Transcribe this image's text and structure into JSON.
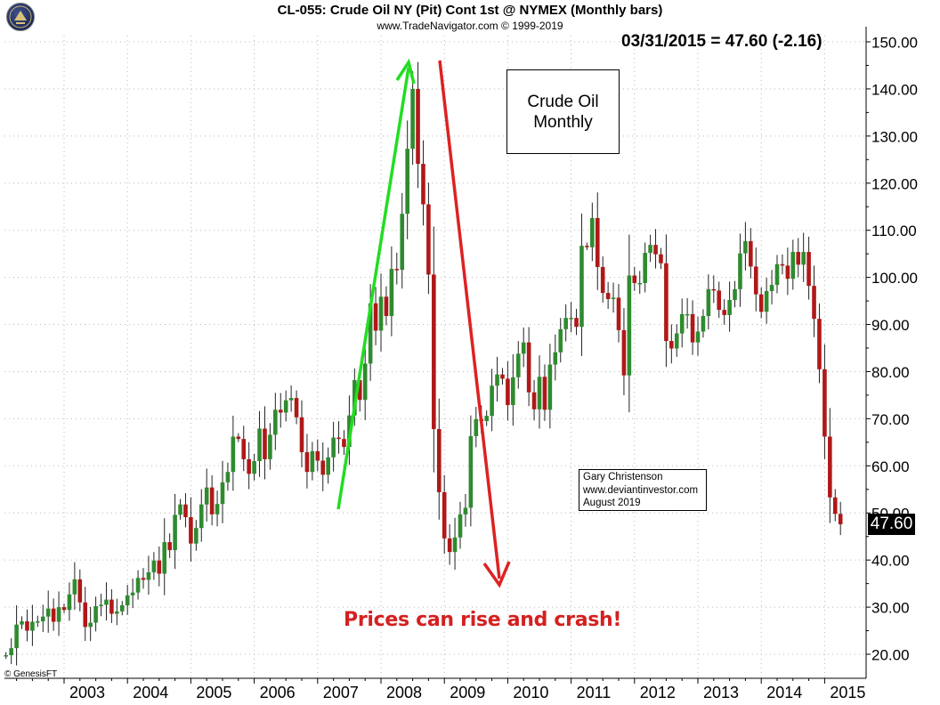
{
  "header": {
    "title": "CL-055:  Crude Oil NY (Pit) Cont 1st @ NYMEX  (Monthly bars)",
    "subtitle": "www.TradeNavigator.com © 1999-2019",
    "price_readout": "03/31/2015 = 47.60 (-2.16)"
  },
  "label_box": {
    "line1": "Crude Oil",
    "line2": "Monthly"
  },
  "credit": {
    "line1": "Gary Christenson",
    "line2": "www.deviantinvestor.com",
    "line3": "August 2019"
  },
  "headline": "Prices can rise and crash!",
  "copyright": "© GenesisFT",
  "last_price": "47.60",
  "colors": {
    "up": "#2e8b2e",
    "down": "#b01818",
    "rise_arrow": "#22dd22",
    "crash_arrow": "#dd2222"
  },
  "chart_data": {
    "type": "candlestick",
    "title": "CL-055:  Crude Oil NY (Pit) Cont 1st @ NYMEX  (Monthly bars)",
    "ylim": [
      15,
      152
    ],
    "y_ticks": [
      "150.00",
      "140.00",
      "130.00",
      "120.00",
      "110.00",
      "100.00",
      "90.00",
      "80.00",
      "70.00",
      "60.00",
      "50.00",
      "40.00",
      "30.00",
      "20.00"
    ],
    "y_tick_values": [
      150,
      140,
      130,
      120,
      110,
      100,
      90,
      80,
      70,
      60,
      50,
      40,
      30,
      20
    ],
    "x_ticks": [
      "2003",
      "2004",
      "2005",
      "2006",
      "2007",
      "2008",
      "2009",
      "2010",
      "2011",
      "2012",
      "2013",
      "2014",
      "2015"
    ],
    "x_tick_values": [
      2003,
      2004,
      2005,
      2006,
      2007,
      2008,
      2009,
      2010,
      2011,
      2012,
      2013,
      2014,
      2015
    ],
    "x_range": [
      2002.0,
      2015.25
    ],
    "close_series": [
      19.8,
      21.3,
      26.3,
      27.0,
      25.0,
      26.9,
      27.0,
      28.0,
      29.7,
      26.9,
      30.0,
      29.4,
      32.7,
      35.9,
      31.0,
      25.8,
      26.7,
      30.2,
      30.5,
      31.6,
      28.6,
      29.1,
      30.4,
      32.5,
      33.1,
      36.2,
      35.8,
      37.4,
      39.9,
      37.1,
      43.8,
      42.1,
      49.6,
      51.8,
      49.1,
      43.5,
      46.8,
      51.8,
      55.4,
      49.7,
      51.9,
      56.5,
      58.7,
      66.2,
      65.7,
      61.4,
      58.3,
      61.0,
      67.9,
      61.4,
      66.6,
      71.9,
      71.3,
      73.9,
      74.4,
      70.3,
      62.9,
      58.7,
      63.1,
      61.1,
      58.1,
      61.8,
      66.0,
      65.7,
      64.0,
      70.7,
      78.2,
      74.0,
      81.7,
      94.5,
      88.7,
      95.9,
      91.8,
      101.8,
      101.6,
      113.5,
      127.3,
      140.0,
      124.1,
      115.5,
      100.6,
      67.8,
      54.4,
      44.6,
      41.7,
      44.8,
      49.7,
      51.1,
      66.3,
      69.9,
      69.5,
      70.6,
      77.0,
      79.4,
      78.5,
      72.9,
      78.8,
      83.8,
      86.2,
      75.6,
      72.0,
      78.9,
      71.9,
      81.5,
      84.1,
      89.0,
      91.4,
      91.4,
      89.5,
      106.7,
      106.4,
      112.6,
      102.2,
      96.7,
      95.4,
      95.7,
      88.8,
      79.2,
      100.4,
      98.8,
      98.8,
      105.2,
      106.9,
      104.9,
      103.0,
      86.5,
      84.9,
      88.1,
      92.2,
      92.2,
      86.2,
      88.5,
      91.8,
      97.5,
      97.2,
      93.1,
      92.0,
      95.2,
      97.5,
      105.1,
      107.7,
      102.3,
      96.4,
      92.7,
      97.1,
      98.4,
      102.8,
      102.5,
      99.7,
      105.4,
      102.7,
      105.4,
      98.2,
      91.2,
      80.5,
      66.2,
      53.3,
      49.8,
      47.6
    ],
    "annotations": [
      "03/31/2015 = 47.60 (-2.16)",
      "Crude Oil Monthly",
      "Gary Christenson www.deviantinvestor.com August 2019",
      "Prices can rise and crash!"
    ]
  }
}
